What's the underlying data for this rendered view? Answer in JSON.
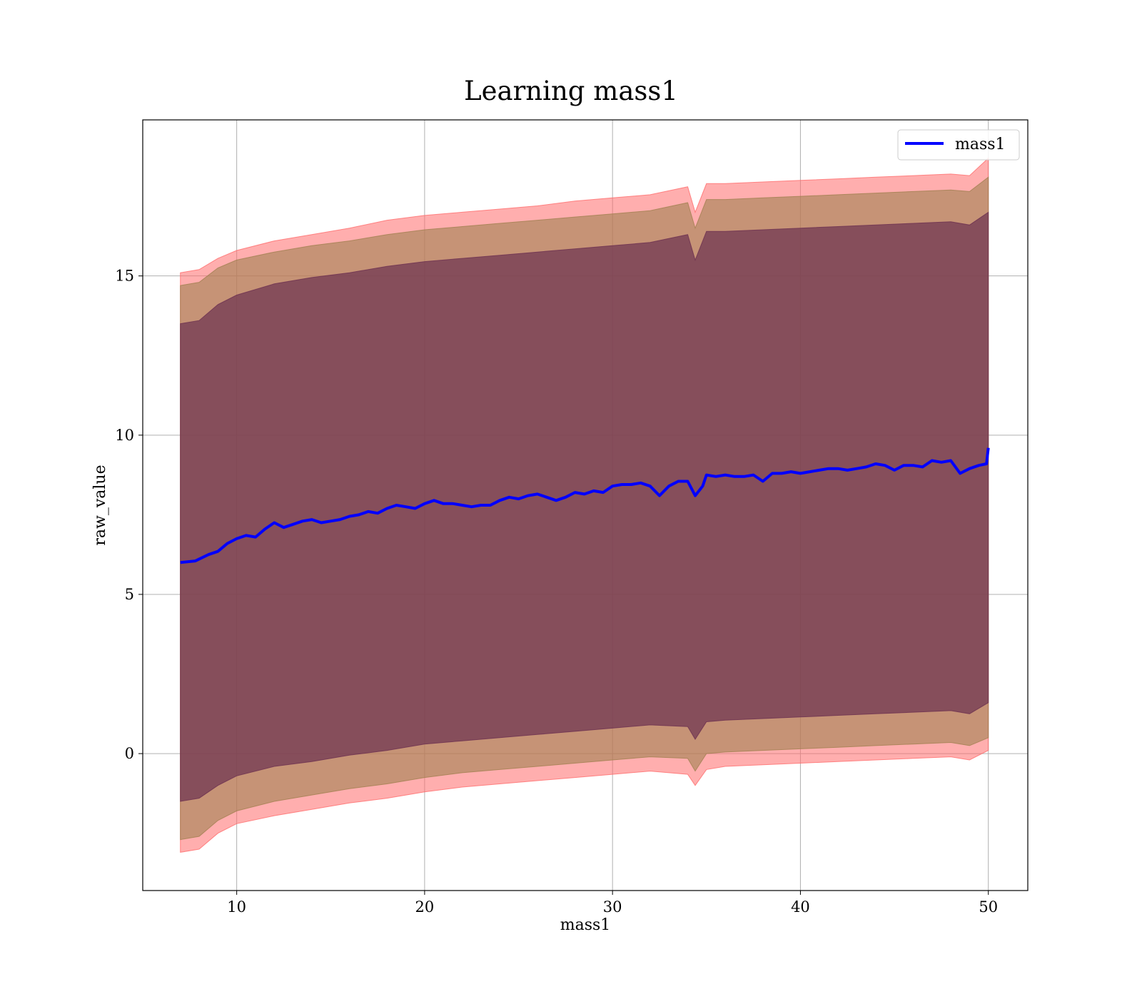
{
  "chart_data": {
    "type": "area",
    "title": "Learning mass1",
    "xlabel": "mass1",
    "ylabel": "raw_value",
    "xlim": [
      5,
      52.1
    ],
    "ylim": [
      -4.3,
      19.9
    ],
    "xticks": [
      10,
      20,
      30,
      40,
      50
    ],
    "yticks": [
      0,
      5,
      10,
      15
    ],
    "grid": true,
    "legend": {
      "position": "top-right",
      "entries": [
        "mass1"
      ]
    },
    "colors": {
      "line": "#0000ff",
      "band_outer": "#ff6b6b",
      "band_middle": "#a08050",
      "band_inner": "#6b3050",
      "grid": "#b0b0b0"
    },
    "series": [
      {
        "name": "mass1",
        "style": "line",
        "points": [
          [
            7,
            6.0
          ],
          [
            7.8,
            6.05
          ],
          [
            8.5,
            6.25
          ],
          [
            9.0,
            6.35
          ],
          [
            9.5,
            6.6
          ],
          [
            10.0,
            6.75
          ],
          [
            10.5,
            6.85
          ],
          [
            11.0,
            6.8
          ],
          [
            11.5,
            7.05
          ],
          [
            12.0,
            7.25
          ],
          [
            12.5,
            7.1
          ],
          [
            13.0,
            7.2
          ],
          [
            13.5,
            7.3
          ],
          [
            14.0,
            7.35
          ],
          [
            14.5,
            7.25
          ],
          [
            15.0,
            7.3
          ],
          [
            15.5,
            7.35
          ],
          [
            16.0,
            7.45
          ],
          [
            16.5,
            7.5
          ],
          [
            17.0,
            7.6
          ],
          [
            17.5,
            7.55
          ],
          [
            18.0,
            7.7
          ],
          [
            18.5,
            7.8
          ],
          [
            19.0,
            7.75
          ],
          [
            19.5,
            7.7
          ],
          [
            20.0,
            7.85
          ],
          [
            20.5,
            7.95
          ],
          [
            21.0,
            7.85
          ],
          [
            21.5,
            7.85
          ],
          [
            22.0,
            7.8
          ],
          [
            22.5,
            7.75
          ],
          [
            23.0,
            7.8
          ],
          [
            23.5,
            7.8
          ],
          [
            24.0,
            7.95
          ],
          [
            24.5,
            8.05
          ],
          [
            25.0,
            8.0
          ],
          [
            25.5,
            8.1
          ],
          [
            26.0,
            8.15
          ],
          [
            26.5,
            8.05
          ],
          [
            27.0,
            7.95
          ],
          [
            27.5,
            8.05
          ],
          [
            28.0,
            8.2
          ],
          [
            28.5,
            8.15
          ],
          [
            29.0,
            8.25
          ],
          [
            29.5,
            8.2
          ],
          [
            30.0,
            8.4
          ],
          [
            30.5,
            8.45
          ],
          [
            31.0,
            8.45
          ],
          [
            31.5,
            8.5
          ],
          [
            32.0,
            8.4
          ],
          [
            32.5,
            8.1
          ],
          [
            33.0,
            8.4
          ],
          [
            33.5,
            8.55
          ],
          [
            34.0,
            8.55
          ],
          [
            34.4,
            8.1
          ],
          [
            34.8,
            8.4
          ],
          [
            35.0,
            8.75
          ],
          [
            35.5,
            8.7
          ],
          [
            36.0,
            8.75
          ],
          [
            36.5,
            8.7
          ],
          [
            37.0,
            8.7
          ],
          [
            37.5,
            8.75
          ],
          [
            38.0,
            8.55
          ],
          [
            38.5,
            8.8
          ],
          [
            39.0,
            8.8
          ],
          [
            39.5,
            8.85
          ],
          [
            40.0,
            8.8
          ],
          [
            40.5,
            8.85
          ],
          [
            41.0,
            8.9
          ],
          [
            41.5,
            8.95
          ],
          [
            42.0,
            8.95
          ],
          [
            42.5,
            8.9
          ],
          [
            43.0,
            8.95
          ],
          [
            43.5,
            9.0
          ],
          [
            44.0,
            9.1
          ],
          [
            44.5,
            9.05
          ],
          [
            45.0,
            8.9
          ],
          [
            45.5,
            9.05
          ],
          [
            46.0,
            9.05
          ],
          [
            46.5,
            9.0
          ],
          [
            47.0,
            9.2
          ],
          [
            47.5,
            9.15
          ],
          [
            48.0,
            9.2
          ],
          [
            48.5,
            8.8
          ],
          [
            49.0,
            8.95
          ],
          [
            49.5,
            9.05
          ],
          [
            49.9,
            9.1
          ],
          [
            50.0,
            9.6
          ]
        ]
      },
      {
        "name": "outer band",
        "style": "band",
        "x": [
          7,
          8,
          9,
          10,
          12,
          14,
          16,
          18,
          20,
          22,
          24,
          26,
          28,
          30,
          32,
          34,
          34.4,
          35,
          36,
          38,
          40,
          42,
          44,
          46,
          48,
          49,
          50
        ],
        "upper": [
          15.1,
          15.2,
          15.55,
          15.8,
          16.1,
          16.3,
          16.5,
          16.75,
          16.9,
          17.0,
          17.1,
          17.2,
          17.35,
          17.45,
          17.55,
          17.8,
          17.0,
          17.9,
          17.9,
          17.95,
          18.0,
          18.05,
          18.1,
          18.15,
          18.2,
          18.15,
          18.7
        ],
        "lower": [
          -3.1,
          -3.0,
          -2.5,
          -2.2,
          -1.95,
          -1.75,
          -1.55,
          -1.4,
          -1.2,
          -1.05,
          -0.95,
          -0.85,
          -0.75,
          -0.65,
          -0.55,
          -0.65,
          -1.0,
          -0.5,
          -0.4,
          -0.35,
          -0.3,
          -0.25,
          -0.2,
          -0.15,
          -0.1,
          -0.2,
          0.1
        ]
      },
      {
        "name": "middle band",
        "style": "band",
        "x": [
          7,
          8,
          9,
          10,
          12,
          14,
          16,
          18,
          20,
          22,
          24,
          26,
          28,
          30,
          32,
          34,
          34.4,
          35,
          36,
          38,
          40,
          42,
          44,
          46,
          48,
          49,
          50
        ],
        "upper": [
          14.7,
          14.8,
          15.25,
          15.5,
          15.75,
          15.95,
          16.1,
          16.3,
          16.45,
          16.55,
          16.65,
          16.75,
          16.85,
          16.95,
          17.05,
          17.3,
          16.5,
          17.4,
          17.4,
          17.45,
          17.5,
          17.55,
          17.6,
          17.65,
          17.7,
          17.65,
          18.1
        ],
        "lower": [
          -2.7,
          -2.6,
          -2.1,
          -1.8,
          -1.5,
          -1.3,
          -1.1,
          -0.95,
          -0.75,
          -0.6,
          -0.5,
          -0.4,
          -0.3,
          -0.2,
          -0.1,
          -0.15,
          -0.55,
          0.0,
          0.05,
          0.1,
          0.15,
          0.2,
          0.25,
          0.3,
          0.35,
          0.25,
          0.5
        ]
      },
      {
        "name": "inner band",
        "style": "band",
        "x": [
          7,
          8,
          9,
          10,
          12,
          14,
          16,
          18,
          20,
          22,
          24,
          26,
          28,
          30,
          32,
          34,
          34.4,
          35,
          36,
          38,
          40,
          42,
          44,
          46,
          48,
          49,
          50
        ],
        "upper": [
          13.5,
          13.6,
          14.1,
          14.4,
          14.75,
          14.95,
          15.1,
          15.3,
          15.45,
          15.55,
          15.65,
          15.75,
          15.85,
          15.95,
          16.05,
          16.3,
          15.5,
          16.4,
          16.4,
          16.45,
          16.5,
          16.55,
          16.6,
          16.65,
          16.7,
          16.6,
          17.0
        ],
        "lower": [
          -1.5,
          -1.4,
          -1.0,
          -0.7,
          -0.4,
          -0.25,
          -0.05,
          0.1,
          0.3,
          0.4,
          0.5,
          0.6,
          0.7,
          0.8,
          0.9,
          0.85,
          0.45,
          1.0,
          1.05,
          1.1,
          1.15,
          1.2,
          1.25,
          1.3,
          1.35,
          1.25,
          1.6
        ]
      }
    ]
  }
}
